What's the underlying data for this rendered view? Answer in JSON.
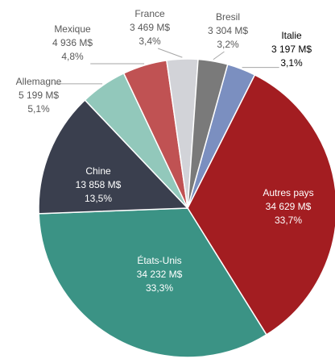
{
  "chart_data": {
    "type": "pie",
    "categories": [
      "Italie",
      "Autres pays",
      "États-Unis",
      "Chine",
      "Allemagne",
      "Mexique",
      "France",
      "Bresil"
    ],
    "values": [
      3197,
      34629,
      34232,
      13858,
      5199,
      4936,
      3469,
      3304
    ],
    "value_labels": [
      "3 197 M$",
      "34 629 M$",
      "34 232 M$",
      "13 858 M$",
      "5 199 M$",
      "4 936 M$",
      "3 469 M$",
      "3 304 M$"
    ],
    "shares": [
      3.1,
      33.7,
      33.3,
      13.5,
      5.1,
      4.8,
      3.4,
      3.2
    ],
    "share_labels": [
      "3,1%",
      "33,7%",
      "33,3%",
      "13,5%",
      "5,1%",
      "4,8%",
      "3,4%",
      "3,2%"
    ],
    "colors": [
      "#7b8fc0",
      "#a31d21",
      "#3b9385",
      "#3a3f4e",
      "#92c8bb",
      "#c05253",
      "#d2d3d8",
      "#7a7a7a"
    ]
  }
}
